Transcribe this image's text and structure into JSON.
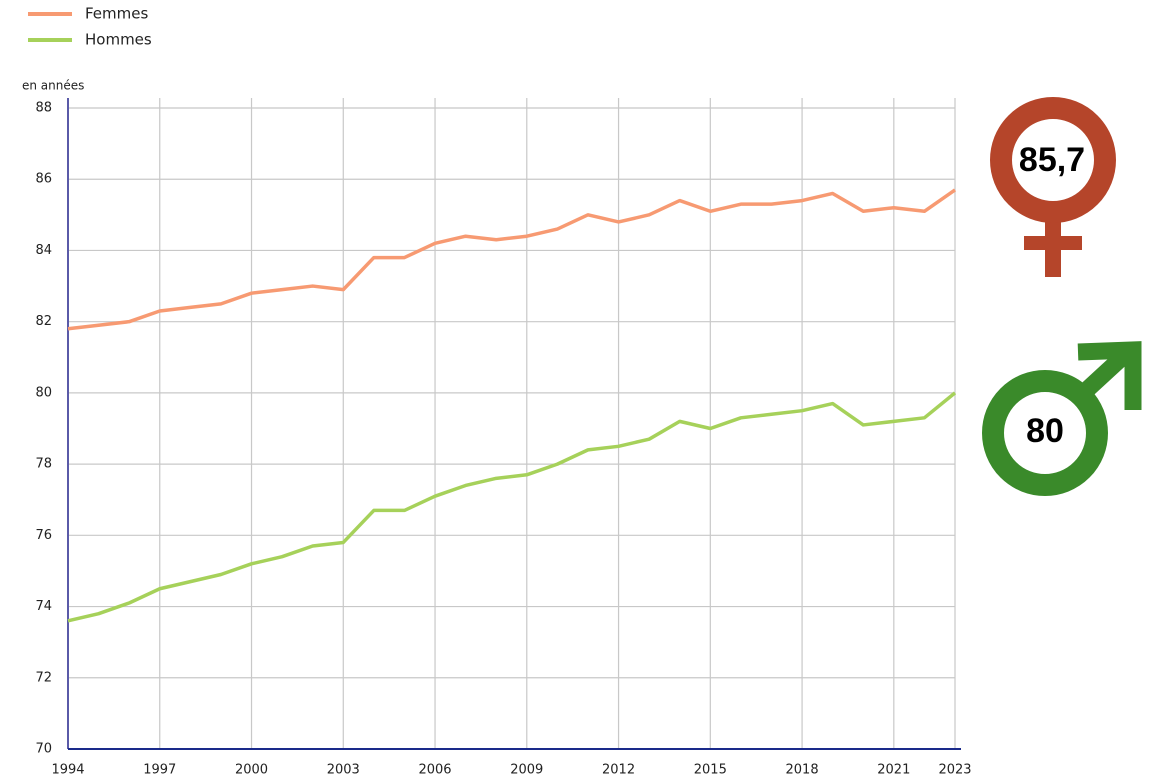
{
  "chart_data": {
    "type": "line",
    "y_label": "en années",
    "x": [
      1994,
      1995,
      1996,
      1997,
      1998,
      1999,
      2000,
      2001,
      2002,
      2003,
      2004,
      2005,
      2006,
      2007,
      2008,
      2009,
      2010,
      2011,
      2012,
      2013,
      2014,
      2015,
      2016,
      2017,
      2018,
      2019,
      2020,
      2021,
      2022,
      2023
    ],
    "series": [
      {
        "name": "Femmes",
        "color": "#f79a72",
        "values": [
          81.8,
          81.9,
          82.0,
          82.3,
          82.4,
          82.5,
          82.8,
          82.9,
          83.0,
          82.9,
          83.8,
          83.8,
          84.2,
          84.4,
          84.3,
          84.4,
          84.6,
          85.0,
          84.8,
          85.0,
          85.4,
          85.1,
          85.3,
          85.3,
          85.4,
          85.6,
          85.1,
          85.2,
          85.1,
          85.7
        ]
      },
      {
        "name": "Hommes",
        "color": "#a6d15a",
        "values": [
          73.6,
          73.8,
          74.1,
          74.5,
          74.7,
          74.9,
          75.2,
          75.4,
          75.7,
          75.8,
          76.7,
          76.7,
          77.1,
          77.4,
          77.6,
          77.7,
          78.0,
          78.4,
          78.5,
          78.7,
          79.2,
          79.0,
          79.3,
          79.4,
          79.5,
          79.7,
          79.1,
          79.2,
          79.3,
          80.0
        ]
      }
    ],
    "xlim": [
      1994,
      2023
    ],
    "xticks": [
      1994,
      1997,
      2000,
      2003,
      2006,
      2009,
      2012,
      2015,
      2018,
      2021,
      2023
    ],
    "ylim": [
      70,
      88
    ],
    "yticks": [
      70,
      72,
      74,
      76,
      78,
      80,
      82,
      84,
      86,
      88
    ],
    "grid": true,
    "legend": "top-left",
    "annotations": [
      {
        "text": "85,7",
        "color": "#b5452a"
      },
      {
        "text": "80",
        "color": "#3a8a2a"
      }
    ]
  }
}
